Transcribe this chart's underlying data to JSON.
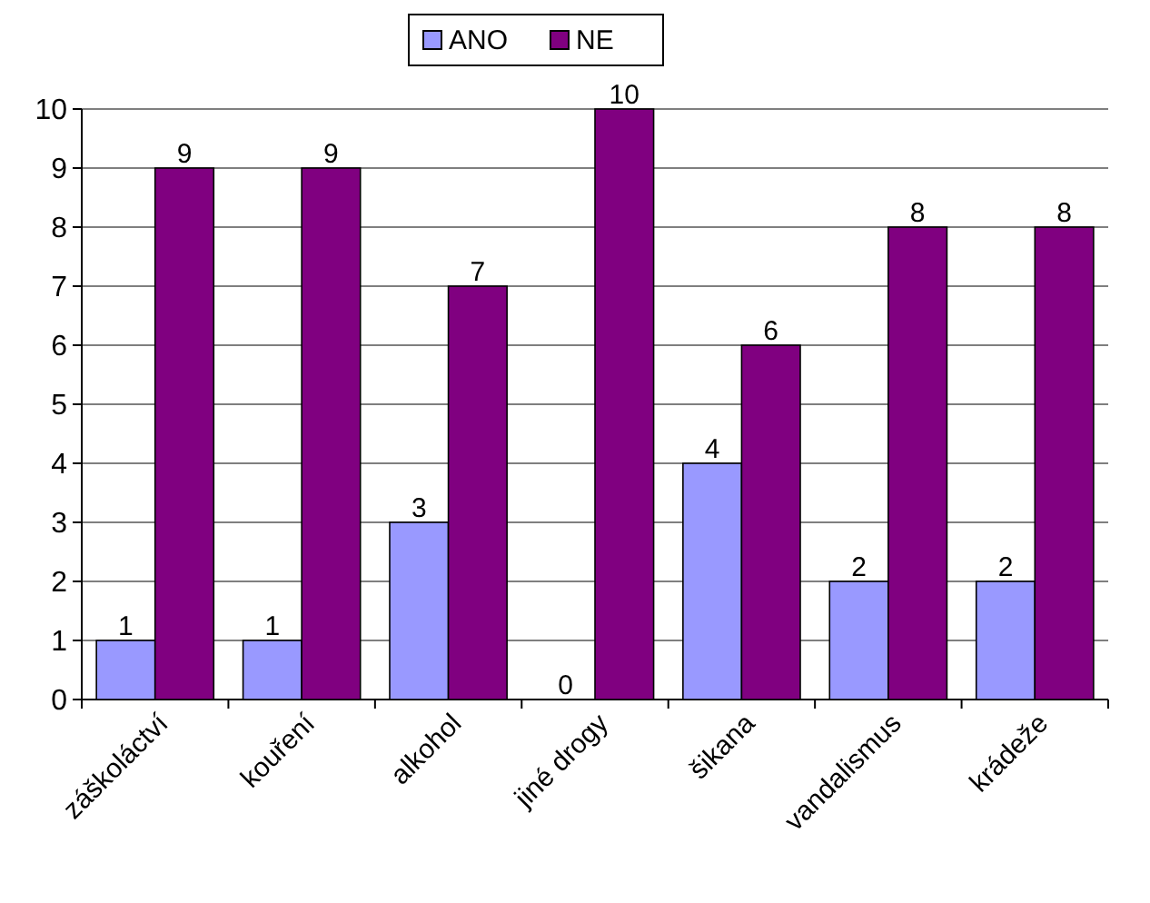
{
  "chart_data": {
    "type": "bar",
    "categories": [
      "záškoláctví",
      "kouření",
      "alkohol",
      "jiné drogy",
      "šikana",
      "vandalismus",
      "krádeže"
    ],
    "series": [
      {
        "name": "ANO",
        "color": "#9999ff",
        "values": [
          1,
          1,
          3,
          0,
          4,
          2,
          2
        ]
      },
      {
        "name": "NE",
        "color": "#800080",
        "values": [
          9,
          9,
          7,
          10,
          6,
          8,
          8
        ]
      }
    ],
    "ylim": [
      0,
      10
    ],
    "yticks": [
      0,
      1,
      2,
      3,
      4,
      5,
      6,
      7,
      8,
      9,
      10
    ],
    "grid": "y",
    "legend": "top",
    "data_labels": true
  }
}
